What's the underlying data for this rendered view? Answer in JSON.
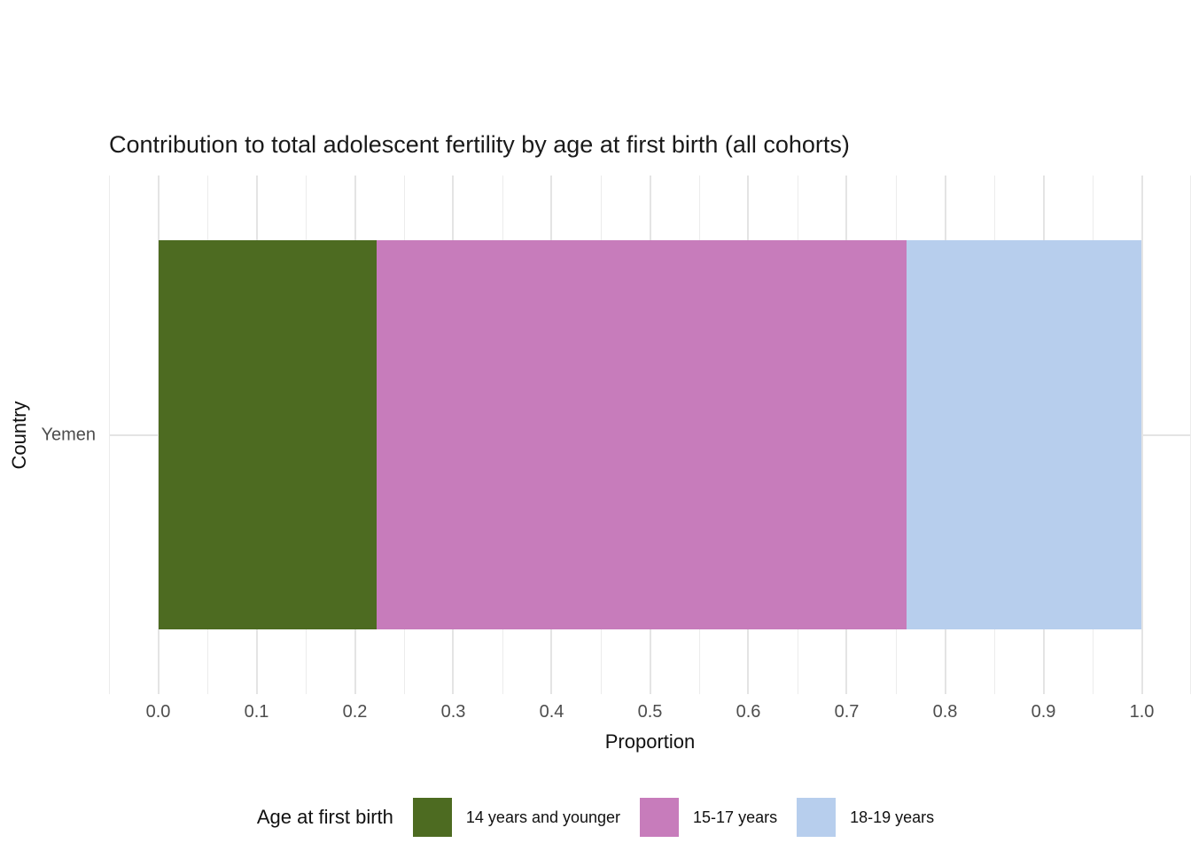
{
  "chart_data": {
    "type": "bar",
    "orientation": "horizontal",
    "stacked": true,
    "title": "Contribution to total adolescent fertility by age at first birth (all cohorts)",
    "xlabel": "Proportion",
    "ylabel": "Country",
    "categories": [
      "Yemen"
    ],
    "series": [
      {
        "name": "14 years and younger",
        "values": [
          0.222
        ],
        "color": "#4D6B21"
      },
      {
        "name": "15-17 years",
        "values": [
          0.539
        ],
        "color": "#C77CBB"
      },
      {
        "name": "18-19 years",
        "values": [
          0.239
        ],
        "color": "#B7CEED"
      }
    ],
    "xlim": [
      -0.05,
      1.05
    ],
    "x_tick_values": [
      0.0,
      0.1,
      0.2,
      0.3,
      0.4,
      0.5,
      0.6,
      0.7,
      0.8,
      0.9,
      1.0
    ],
    "x_tick_labels": [
      "0.0",
      "0.1",
      "0.2",
      "0.3",
      "0.4",
      "0.5",
      "0.6",
      "0.7",
      "0.8",
      "0.9",
      "1.0"
    ],
    "x_minor_tick_values": [
      -0.05,
      0.05,
      0.15,
      0.25,
      0.35,
      0.45,
      0.55,
      0.65,
      0.75,
      0.85,
      0.95,
      1.05
    ],
    "bar_width_fraction": 0.75,
    "grid": true,
    "legend": {
      "title": "Age at first birth",
      "position": "bottom"
    },
    "style_colors": {
      "grid_major": "#e4e4e4",
      "grid_minor": "#ececec",
      "axis_text": "#4d4d4d",
      "title_text": "#1a1a1a",
      "background": "#ffffff"
    }
  }
}
